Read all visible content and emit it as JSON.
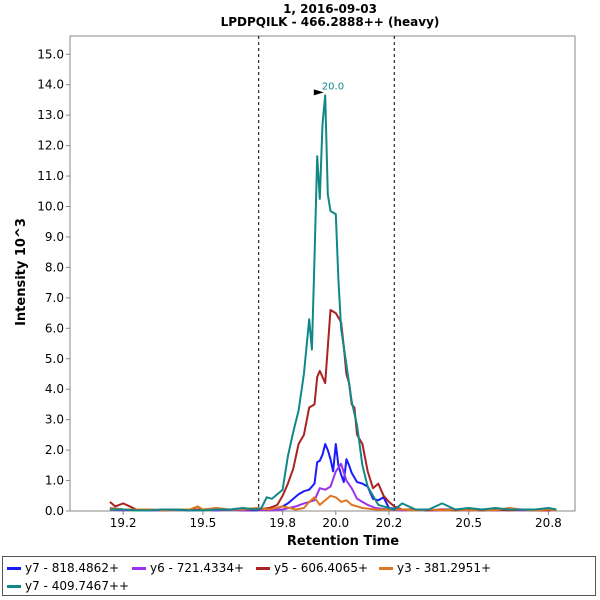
{
  "chart_data": {
    "type": "line",
    "title": "1, 2016-09-03",
    "subtitle": "LPDPQILK - 466.2888++ (heavy)",
    "xlabel": "Retention Time",
    "ylabel": "Intensity 10^3",
    "xlim": [
      19.0,
      20.9
    ],
    "ylim": [
      0,
      15.6
    ],
    "x_ticks": [
      "19.2",
      "19.5",
      "19.8",
      "20.0",
      "20.2",
      "20.5",
      "20.8"
    ],
    "x_tick_values": [
      19.2,
      19.5,
      19.8,
      20.0,
      20.2,
      20.5,
      20.8
    ],
    "y_ticks": [
      "0.0",
      "1.0",
      "2.0",
      "3.0",
      "4.0",
      "5.0",
      "6.0",
      "7.0",
      "8.0",
      "9.0",
      "10.0",
      "11.0",
      "12.0",
      "13.0",
      "14.0",
      "15.0"
    ],
    "y_tick_values": [
      0,
      1,
      2,
      3,
      4,
      5,
      6,
      7,
      8,
      9,
      10,
      11,
      12,
      13,
      14,
      15
    ],
    "boundaries": [
      19.71,
      20.22
    ],
    "peak_label": "20.0",
    "peak_at": [
      19.97,
      13.65
    ],
    "grid": false,
    "legend_position": "bottom",
    "series": [
      {
        "name": "y7 - 818.4862+",
        "color": "#1a1aff",
        "x": [
          19.15,
          19.2,
          19.25,
          19.3,
          19.35,
          19.4,
          19.45,
          19.5,
          19.55,
          19.6,
          19.65,
          19.7,
          19.72,
          19.75,
          19.78,
          19.8,
          19.82,
          19.84,
          19.86,
          19.88,
          19.9,
          19.92,
          19.93,
          19.94,
          19.95,
          19.96,
          19.97,
          19.98,
          19.99,
          20.0,
          20.01,
          20.02,
          20.03,
          20.04,
          20.05,
          20.06,
          20.08,
          20.1,
          20.12,
          20.14,
          20.16,
          20.18,
          20.2,
          20.25,
          20.3,
          20.35,
          20.4,
          20.45,
          20.5,
          20.55,
          20.6,
          20.65,
          20.7,
          20.75,
          20.8,
          20.83
        ],
        "y": [
          0.1,
          0.05,
          0.05,
          0.02,
          0.05,
          0.05,
          0.02,
          0.05,
          0.02,
          0.05,
          0.02,
          0.02,
          0.05,
          0.05,
          0.1,
          0.15,
          0.25,
          0.4,
          0.55,
          0.65,
          0.7,
          0.9,
          1.6,
          1.65,
          1.85,
          2.2,
          2.0,
          1.7,
          1.3,
          2.2,
          1.5,
          1.2,
          0.95,
          1.7,
          1.5,
          1.25,
          0.95,
          0.9,
          0.8,
          0.4,
          0.35,
          0.45,
          0.1,
          0.05,
          0.05,
          0.02,
          0.05,
          0.05,
          0.02,
          0.05,
          0.02,
          0.05,
          0.05,
          0.02,
          0.05,
          0.05
        ]
      },
      {
        "name": "y6 - 721.4334+",
        "color": "#9933ee",
        "x": [
          19.15,
          19.2,
          19.25,
          19.3,
          19.35,
          19.4,
          19.45,
          19.5,
          19.55,
          19.6,
          19.65,
          19.7,
          19.75,
          19.8,
          19.85,
          19.88,
          19.9,
          19.92,
          19.94,
          19.96,
          19.98,
          20.0,
          20.02,
          20.04,
          20.06,
          20.08,
          20.1,
          20.12,
          20.15,
          20.2,
          20.25,
          20.3,
          20.35,
          20.4,
          20.45,
          20.5,
          20.55,
          20.6,
          20.65,
          20.7,
          20.75,
          20.8,
          20.83
        ],
        "y": [
          0.05,
          0.02,
          0.05,
          0.02,
          0.02,
          0.05,
          0.02,
          0.05,
          0.02,
          0.05,
          0.02,
          0.05,
          0.02,
          0.05,
          0.15,
          0.25,
          0.3,
          0.35,
          0.75,
          0.7,
          0.8,
          1.3,
          1.55,
          1.0,
          0.75,
          0.4,
          0.3,
          0.2,
          0.1,
          0.05,
          0.02,
          0.05,
          0.02,
          0.02,
          0.05,
          0.02,
          0.05,
          0.02,
          0.05,
          0.02,
          0.05,
          0.02,
          0.05
        ]
      },
      {
        "name": "y5 - 606.4065+",
        "color": "#aa2222",
        "x": [
          19.15,
          19.17,
          19.2,
          19.25,
          19.3,
          19.35,
          19.4,
          19.45,
          19.5,
          19.55,
          19.6,
          19.65,
          19.7,
          19.75,
          19.78,
          19.8,
          19.82,
          19.84,
          19.86,
          19.88,
          19.9,
          19.92,
          19.93,
          19.94,
          19.96,
          19.98,
          20.0,
          20.02,
          20.03,
          20.04,
          20.05,
          20.06,
          20.07,
          20.08,
          20.1,
          20.12,
          20.14,
          20.16,
          20.18,
          20.2,
          20.22,
          20.25,
          20.3,
          20.35,
          20.4,
          20.45,
          20.5,
          20.55,
          20.6,
          20.65,
          20.7,
          20.75,
          20.8,
          20.83
        ],
        "y": [
          0.3,
          0.15,
          0.25,
          0.05,
          0.05,
          0.02,
          0.05,
          0.05,
          0.05,
          0.05,
          0.05,
          0.05,
          0.05,
          0.1,
          0.2,
          0.5,
          0.9,
          1.4,
          2.2,
          2.5,
          3.4,
          3.5,
          4.4,
          4.6,
          4.2,
          6.6,
          6.5,
          6.2,
          5.4,
          4.5,
          4.2,
          3.5,
          3.4,
          2.5,
          2.2,
          1.3,
          0.75,
          0.9,
          0.5,
          0.3,
          0.15,
          0.05,
          0.05,
          0.02,
          0.05,
          0.02,
          0.05,
          0.02,
          0.05,
          0.02,
          0.05,
          0.02,
          0.02,
          0.05
        ]
      },
      {
        "name": "y3 - 381.2951+",
        "color": "#dd7722",
        "x": [
          19.15,
          19.2,
          19.25,
          19.3,
          19.35,
          19.4,
          19.45,
          19.48,
          19.5,
          19.55,
          19.6,
          19.65,
          19.7,
          19.75,
          19.8,
          19.85,
          19.88,
          19.9,
          19.92,
          19.94,
          19.96,
          19.98,
          20.0,
          20.02,
          20.04,
          20.06,
          20.08,
          20.1,
          20.15,
          20.2,
          20.25,
          20.3,
          20.35,
          20.4,
          20.45,
          20.5,
          20.55,
          20.6,
          20.65,
          20.7,
          20.75,
          20.8,
          20.83
        ],
        "y": [
          0.1,
          0.05,
          0.05,
          0.05,
          0.02,
          0.05,
          0.05,
          0.15,
          0.05,
          0.1,
          0.05,
          0.05,
          0.1,
          0.05,
          0.15,
          0.05,
          0.1,
          0.3,
          0.45,
          0.2,
          0.35,
          0.5,
          0.45,
          0.3,
          0.35,
          0.2,
          0.15,
          0.1,
          0.05,
          0.05,
          0.05,
          0.02,
          0.05,
          0.02,
          0.05,
          0.02,
          0.05,
          0.02,
          0.1,
          0.05,
          0.02,
          0.05,
          0.02
        ]
      },
      {
        "name": "y7 - 409.7467++",
        "color": "#118888",
        "x": [
          19.15,
          19.2,
          19.25,
          19.3,
          19.35,
          19.4,
          19.45,
          19.5,
          19.55,
          19.6,
          19.65,
          19.7,
          19.72,
          19.74,
          19.76,
          19.78,
          19.8,
          19.82,
          19.84,
          19.86,
          19.88,
          19.9,
          19.91,
          19.92,
          19.93,
          19.94,
          19.95,
          19.96,
          19.97,
          19.98,
          20.0,
          20.01,
          20.02,
          20.04,
          20.06,
          20.08,
          20.1,
          20.12,
          20.14,
          20.16,
          20.18,
          20.2,
          20.22,
          20.25,
          20.3,
          20.35,
          20.4,
          20.45,
          20.5,
          20.55,
          20.6,
          20.65,
          20.7,
          20.75,
          20.8,
          20.83
        ],
        "y": [
          0.05,
          0.05,
          0.02,
          0.02,
          0.05,
          0.05,
          0.02,
          0.02,
          0.05,
          0.05,
          0.1,
          0.05,
          0.1,
          0.45,
          0.4,
          0.55,
          0.7,
          1.8,
          2.6,
          3.3,
          4.5,
          6.3,
          5.3,
          8.3,
          11.65,
          10.25,
          12.7,
          13.65,
          10.4,
          9.85,
          9.75,
          7.6,
          6.0,
          4.8,
          3.6,
          2.8,
          1.5,
          0.8,
          0.5,
          0.2,
          0.15,
          0.1,
          0.05,
          0.25,
          0.05,
          0.05,
          0.25,
          0.05,
          0.1,
          0.05,
          0.1,
          0.05,
          0.05,
          0.05,
          0.1,
          0.05
        ]
      }
    ]
  }
}
